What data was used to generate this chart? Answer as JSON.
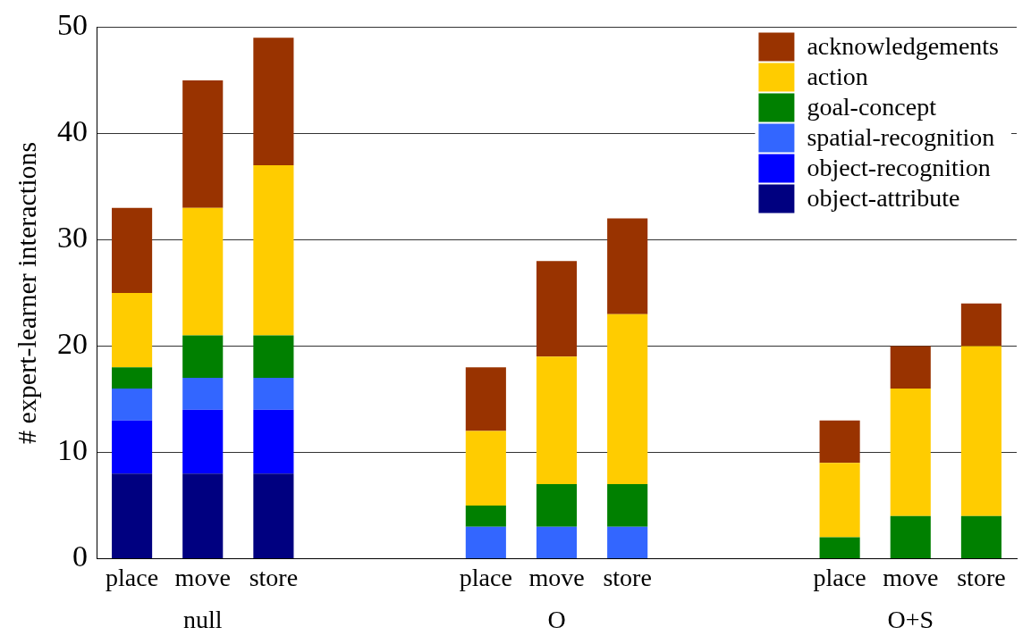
{
  "chart_data": {
    "type": "bar",
    "stacked": true,
    "ylabel": "# expert-learner interactions",
    "categories": [
      "place",
      "move",
      "store",
      null,
      null,
      "place",
      "move",
      "store",
      null,
      null,
      "place",
      "move",
      "store"
    ],
    "series": [
      {
        "name": "object-attribute",
        "color": "#000080",
        "values": [
          8,
          8,
          8,
          null,
          null,
          0,
          0,
          0,
          null,
          null,
          0,
          0,
          0
        ]
      },
      {
        "name": "object-recognition",
        "color": "#0000ff",
        "values": [
          5,
          6,
          6,
          null,
          null,
          0,
          0,
          0,
          null,
          null,
          0,
          0,
          0
        ]
      },
      {
        "name": "spatial-recognition",
        "color": "#3366ff",
        "values": [
          3,
          3,
          3,
          null,
          null,
          3,
          3,
          3,
          null,
          null,
          0,
          0,
          0
        ]
      },
      {
        "name": "goal-concept",
        "color": "#008000",
        "values": [
          2,
          4,
          4,
          null,
          null,
          2,
          4,
          4,
          null,
          null,
          2,
          4,
          4
        ]
      },
      {
        "name": "action",
        "color": "#ffcc00",
        "values": [
          7,
          12,
          16,
          null,
          null,
          7,
          12,
          16,
          null,
          null,
          7,
          12,
          16
        ]
      },
      {
        "name": "acknowledgements",
        "color": "#993300",
        "values": [
          8,
          12,
          12,
          null,
          null,
          6,
          9,
          9,
          null,
          null,
          4,
          4,
          4
        ]
      }
    ],
    "ylim": [
      0,
      50
    ],
    "yticks": [
      0,
      10,
      20,
      30,
      40,
      50
    ],
    "grid": "y",
    "legend": "top right",
    "annotations": [
      "null",
      "O",
      "O+S"
    ]
  }
}
